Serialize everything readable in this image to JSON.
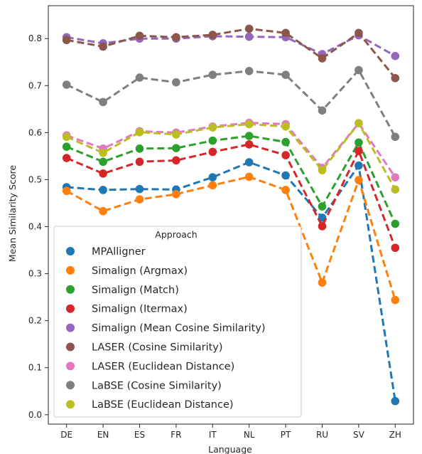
{
  "chart_data": {
    "type": "line",
    "xlabel": "Language",
    "ylabel": "Mean Similarity Score",
    "categories": [
      "DE",
      "EN",
      "ES",
      "FR",
      "IT",
      "NL",
      "PT",
      "RU",
      "SV",
      "ZH"
    ],
    "ylim": [
      -0.02,
      0.87
    ],
    "yticks": [
      "0.0",
      "0.1",
      "0.2",
      "0.3",
      "0.4",
      "0.5",
      "0.6",
      "0.7",
      "0.8"
    ],
    "grid": false,
    "legend": {
      "title": "Approach",
      "placement": "lower-left"
    },
    "series": [
      {
        "name": "MPAlligner",
        "color": "#1f77b4",
        "values": [
          0.484,
          0.478,
          0.48,
          0.479,
          0.505,
          0.537,
          0.509,
          0.419,
          0.53,
          0.029
        ]
      },
      {
        "name": "Simalign (Argmax)",
        "color": "#ff7f0e",
        "values": [
          0.476,
          0.433,
          0.458,
          0.469,
          0.488,
          0.506,
          0.478,
          0.281,
          0.499,
          0.244
        ]
      },
      {
        "name": "Simalign (Match)",
        "color": "#2ca02c",
        "values": [
          0.57,
          0.538,
          0.566,
          0.567,
          0.583,
          0.593,
          0.58,
          0.443,
          0.579,
          0.406
        ]
      },
      {
        "name": "Simalign (Itermax)",
        "color": "#d62728",
        "values": [
          0.546,
          0.513,
          0.538,
          0.541,
          0.559,
          0.575,
          0.552,
          0.401,
          0.561,
          0.355
        ]
      },
      {
        "name": "Simalign (Mean Cosine Similarity)",
        "color": "#9467bd",
        "values": [
          0.803,
          0.79,
          0.8,
          0.8,
          0.805,
          0.804,
          0.803,
          0.767,
          0.807,
          0.763
        ]
      },
      {
        "name": "LASER (Cosine Similarity)",
        "color": "#8c564b",
        "values": [
          0.797,
          0.783,
          0.806,
          0.803,
          0.808,
          0.821,
          0.812,
          0.758,
          0.812,
          0.716
        ]
      },
      {
        "name": "LASER (Euclidean Distance)",
        "color": "#e377c2",
        "values": [
          0.594,
          0.566,
          0.603,
          0.6,
          0.613,
          0.621,
          0.618,
          0.525,
          0.62,
          0.505
        ]
      },
      {
        "name": "LaBSE (Cosine Similarity)",
        "color": "#7f7f7f",
        "values": [
          0.702,
          0.665,
          0.717,
          0.707,
          0.723,
          0.731,
          0.723,
          0.647,
          0.733,
          0.591
        ]
      },
      {
        "name": "LaBSE (Euclidean Distance)",
        "color": "#bcbd22",
        "values": [
          0.591,
          0.557,
          0.601,
          0.596,
          0.611,
          0.618,
          0.613,
          0.52,
          0.62,
          0.479
        ]
      }
    ]
  }
}
